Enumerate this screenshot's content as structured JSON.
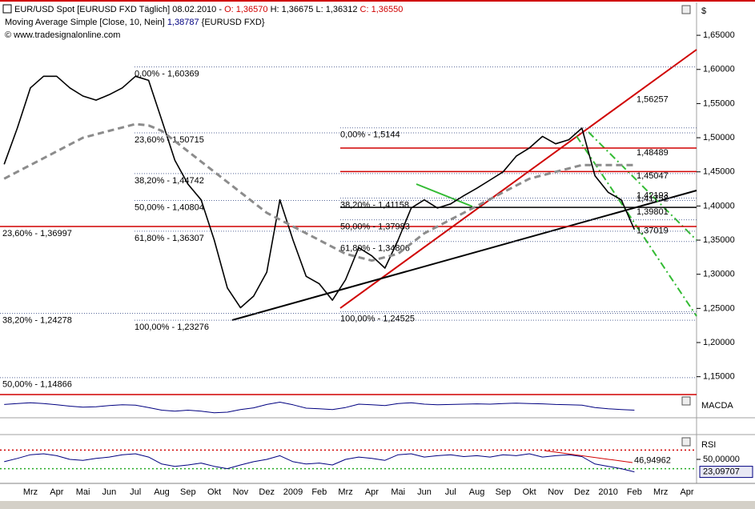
{
  "header": {
    "title": "EUR/USD Spot [EURUSD FXD  Täglich] 08.02.2010 -",
    "open": "O: 1,36570",
    "high": "H: 1,36675",
    "low": "L: 1,36312",
    "close": "C: 1,36550",
    "indicator": "Moving Average Simple [Close, 10, Nein]",
    "indicator_value": "1,38787",
    "indicator_source": "{EURUSD FXD}",
    "copyright": "© www.tradesignalonline.com"
  },
  "chart_data": [
    {
      "type": "line",
      "axis_label": "$",
      "categories": [
        null,
        null,
        "Mrz",
        null,
        "Apr",
        null,
        "Mai",
        null,
        "Jun",
        null,
        "Jul",
        null,
        "Aug",
        null,
        "Sep",
        null,
        "Okt",
        null,
        "Nov",
        null,
        "Dez",
        null,
        "2009",
        null,
        "Feb",
        null,
        "Mrz",
        null,
        "Apr",
        null,
        "Mai",
        null,
        "Jun",
        null,
        "Jul",
        null,
        "Aug",
        null,
        "Sep",
        null,
        "Okt",
        null,
        "Nov",
        null,
        "Dez",
        null,
        "2010",
        null,
        "Feb",
        null,
        "Mrz",
        null,
        "Apr",
        null
      ],
      "series": [
        {
          "color": "#000000",
          "width": 1.6,
          "dash": "none",
          "values": [
            1.461,
            1.514,
            1.573,
            1.59,
            1.59,
            1.573,
            1.561,
            1.555,
            1.563,
            1.573,
            1.59,
            1.584,
            1.526,
            1.467,
            1.432,
            1.409,
            1.35,
            1.28,
            1.251,
            1.268,
            1.303,
            1.409,
            1.35,
            1.297,
            1.286,
            1.262,
            1.292,
            1.339,
            1.327,
            1.309,
            1.35,
            1.397,
            1.409,
            1.397,
            1.403,
            1.415,
            1.426,
            1.438,
            1.45,
            1.473,
            1.485,
            1.502,
            1.491,
            1.497,
            1.514,
            1.444,
            1.42,
            1.409,
            1.3655,
            null,
            null,
            null,
            null,
            null
          ]
        },
        {
          "color": "#8c8c8c",
          "width": 3,
          "dash": "8 5",
          "values": [
            1.44,
            1.45,
            1.46,
            1.47,
            1.48,
            1.49,
            1.5,
            1.505,
            1.51,
            1.515,
            1.52,
            1.518,
            1.51,
            1.495,
            1.48,
            1.465,
            1.45,
            1.435,
            1.42,
            1.405,
            1.39,
            1.38,
            1.37,
            1.36,
            1.35,
            1.34,
            1.33,
            1.325,
            1.32,
            1.325,
            1.33,
            1.345,
            1.36,
            1.37,
            1.38,
            1.39,
            1.4,
            1.41,
            1.42,
            1.43,
            1.44,
            1.445,
            1.45,
            1.455,
            1.46,
            1.46,
            1.46,
            1.46,
            1.46,
            null,
            null,
            null,
            null,
            null
          ]
        }
      ],
      "ylim": [
        1.125,
        1.697
      ],
      "yticks": [
        {
          "value": 1.15,
          "label": "1,15000"
        },
        {
          "value": 1.2,
          "label": "1,20000"
        },
        {
          "value": 1.25,
          "label": "1,25000"
        },
        {
          "value": 1.3,
          "label": "1,30000"
        },
        {
          "value": 1.35,
          "label": "1,35000"
        },
        {
          "value": 1.4,
          "label": "1,40000"
        },
        {
          "value": 1.45,
          "label": "1,45000"
        },
        {
          "value": 1.5,
          "label": "1,50000"
        },
        {
          "value": 1.55,
          "label": "1,55000"
        },
        {
          "value": 1.6,
          "label": "1,60000"
        },
        {
          "value": 1.65,
          "label": "1,65000"
        }
      ],
      "fib_left": [
        {
          "value": 1.36997,
          "label": "23,60% - 1,36997",
          "color": "#d00000"
        },
        {
          "value": 1.24278,
          "label": "38,20% - 1,24278"
        },
        {
          "value": 1.14866,
          "label": "50,00% - 1,14866"
        }
      ],
      "fib_2008": [
        {
          "value": 1.60369,
          "label": "0,00% - 1,60369"
        },
        {
          "value": 1.50715,
          "label": "23,60% - 1,50715"
        },
        {
          "value": 1.44742,
          "label": "38,20% - 1,44742"
        },
        {
          "value": 1.40804,
          "label": "50,00% - 1,40804"
        },
        {
          "value": 1.36307,
          "label": "61,80% - 1,36307"
        },
        {
          "value": 1.23276,
          "label": "100,00% - 1,23276"
        }
      ],
      "fib_2009": [
        {
          "value": 1.5144,
          "label": "0,00% - 1,5144"
        },
        {
          "value": 1.41158,
          "label": "38,20% - 1,41158"
        },
        {
          "value": 1.37983,
          "label": "50,00% - 1,37983"
        },
        {
          "value": 1.34806,
          "label": "61,80% - 1,34806"
        },
        {
          "value": 1.24525,
          "label": "100,00% - 1,24525"
        }
      ],
      "right_levels": [
        {
          "value": 1.56257,
          "label": "1,56257",
          "color": "#d00000",
          "line": false
        },
        {
          "value": 1.48489,
          "label": "1,48489",
          "color": "#d00000",
          "line": true
        },
        {
          "value": 1.45047,
          "label": "1,45047",
          "color": "#d00000",
          "line": true
        },
        {
          "value": 1.41752,
          "label": "1,41752",
          "color": "#33bb33",
          "line": false
        },
        {
          "value": 1.42193,
          "label": "1,42193",
          "color": "#000000",
          "line": false
        },
        {
          "value": 1.39801,
          "label": "1,39801",
          "color": "#000000",
          "line": true
        },
        {
          "value": 1.37019,
          "label": "1,37019",
          "color": "#33bb33",
          "line": false
        }
      ]
    },
    {
      "type": "line",
      "title": "MACDA",
      "series": [
        {
          "color": "#000080",
          "width": 1,
          "dash": "none",
          "values": [
            0.005,
            0.008,
            0.01,
            0.008,
            0.004,
            0,
            -0.003,
            -0.002,
            0.002,
            0.004,
            0.003,
            -0.004,
            -0.012,
            -0.015,
            -0.012,
            -0.015,
            -0.02,
            -0.018,
            -0.01,
            -0.005,
            0.005,
            0.012,
            0.004,
            -0.006,
            -0.008,
            -0.01,
            -0.004,
            0.006,
            0.004,
            0.002,
            0.008,
            0.01,
            0.006,
            0.004,
            0.005,
            0.006,
            0.007,
            0.006,
            0.008,
            0.009,
            0.008,
            0.007,
            0.005,
            0.004,
            0.003,
            -0.004,
            -0.008,
            -0.01,
            -0.012,
            null,
            null,
            null,
            null,
            null
          ]
        }
      ],
      "ylim": [
        -0.03,
        0.03
      ]
    },
    {
      "type": "line",
      "title": "RSI",
      "series": [
        {
          "color": "#000080",
          "width": 1,
          "dash": "none",
          "values": [
            45,
            52,
            60,
            62,
            58,
            50,
            48,
            52,
            55,
            60,
            62,
            55,
            40,
            35,
            38,
            42,
            35,
            30,
            38,
            45,
            50,
            58,
            45,
            40,
            42,
            38,
            50,
            55,
            52,
            48,
            60,
            62,
            55,
            58,
            60,
            56,
            58,
            55,
            60,
            58,
            62,
            55,
            58,
            60,
            56,
            40,
            35,
            30,
            23.09707,
            null,
            null,
            null,
            null,
            null
          ]
        }
      ],
      "ylim": [
        0,
        100
      ],
      "yticks": [
        {
          "value": 50,
          "label": "50,00000"
        }
      ],
      "ref_levels": [
        {
          "value": 70,
          "color": "#d00000"
        },
        {
          "value": 30,
          "color": "#22aa22"
        }
      ],
      "last_label": {
        "value": 23.09707,
        "label": "23,09707"
      },
      "annotations": [
        {
          "value": 46.94962,
          "label": "46,94962",
          "color": "#d00000"
        }
      ]
    }
  ]
}
